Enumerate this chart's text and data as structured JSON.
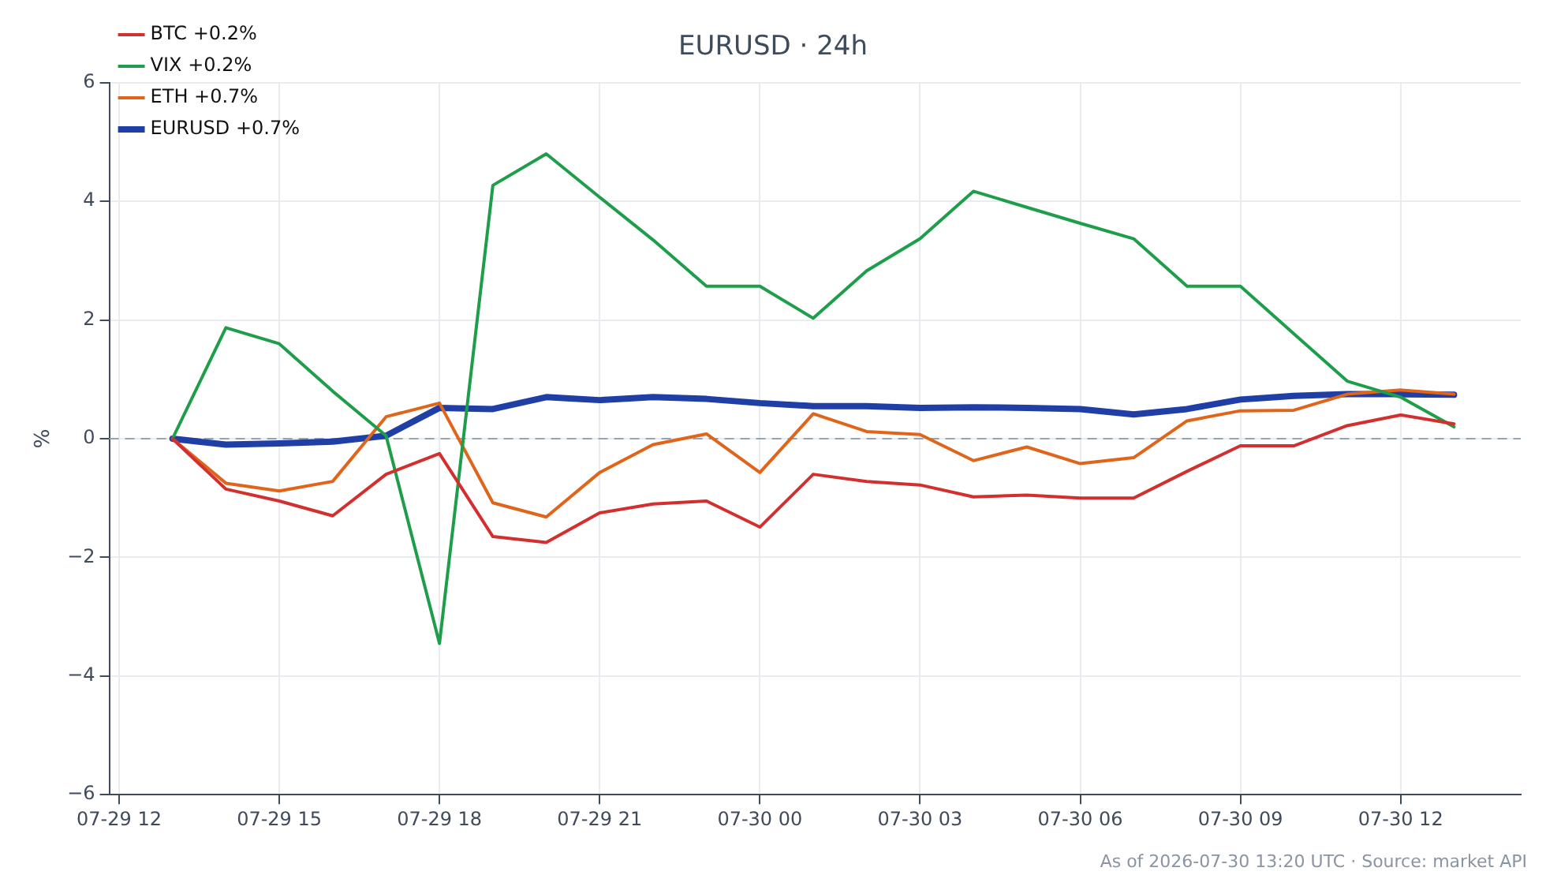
{
  "chart_data": {
    "type": "line",
    "title": "EURUSD · 24h",
    "ylabel": "%",
    "x": [
      "2026-07-29T13:00",
      "2026-07-29T14:00",
      "2026-07-29T15:00",
      "2026-07-29T16:00",
      "2026-07-29T17:00",
      "2026-07-29T18:00",
      "2026-07-29T19:00",
      "2026-07-29T20:00",
      "2026-07-29T21:00",
      "2026-07-29T22:00",
      "2026-07-29T23:00",
      "2026-07-30T00:00",
      "2026-07-30T01:00",
      "2026-07-30T02:00",
      "2026-07-30T03:00",
      "2026-07-30T04:00",
      "2026-07-30T05:00",
      "2026-07-30T06:00",
      "2026-07-30T07:00",
      "2026-07-30T08:00",
      "2026-07-30T09:00",
      "2026-07-30T10:00",
      "2026-07-30T11:00",
      "2026-07-30T12:00",
      "2026-07-30T13:00"
    ],
    "series": [
      {
        "name": "EURUSD +0.7%",
        "color": "#1f3fa6",
        "values": [
          0,
          -0.1,
          -0.08,
          -0.05,
          0.05,
          0.52,
          0.5,
          0.7,
          0.65,
          0.7,
          0.67,
          0.6,
          0.55,
          0.55,
          0.52,
          0.53,
          0.52,
          0.5,
          0.41,
          0.5,
          0.66,
          0.72,
          0.75,
          0.75,
          0.74
        ]
      },
      {
        "name": "BTC +0.2%",
        "color": "#d32f2f",
        "values": [
          0,
          -0.85,
          -1.05,
          -1.3,
          -0.6,
          -0.25,
          -1.65,
          -1.75,
          -1.25,
          -1.1,
          -1.05,
          -1.49,
          -0.6,
          -0.72,
          -0.78,
          -0.98,
          -0.95,
          -1.0,
          -1.0,
          -0.55,
          -0.12,
          -0.12,
          0.22,
          0.4,
          0.25
        ]
      },
      {
        "name": "VIX +0.2%",
        "color": "#1e9e4a",
        "values": [
          0,
          1.87,
          1.6,
          0.8,
          0.05,
          -3.45,
          4.27,
          4.8,
          4.07,
          3.35,
          2.57,
          2.57,
          2.03,
          2.83,
          3.37,
          4.17,
          3.9,
          3.63,
          3.37,
          2.57,
          2.57,
          1.77,
          0.97,
          0.7,
          0.2
        ]
      },
      {
        "name": "ETH +0.7%",
        "color": "#e0641a",
        "values": [
          0,
          -0.75,
          -0.88,
          -0.72,
          0.37,
          0.6,
          -1.08,
          -1.32,
          -0.57,
          -0.1,
          0.08,
          -0.57,
          0.42,
          0.12,
          0.07,
          -0.37,
          -0.14,
          -0.42,
          -0.32,
          0.3,
          0.47,
          0.48,
          0.75,
          0.82,
          0.75
        ]
      }
    ],
    "xlim": [
      "2026-07-29T11:49",
      "2026-07-30T14:15"
    ],
    "xticks": [
      {
        "value": "2026-07-29T12:00",
        "label": "07-29 12"
      },
      {
        "value": "2026-07-29T15:00",
        "label": "07-29 15"
      },
      {
        "value": "2026-07-29T18:00",
        "label": "07-29 18"
      },
      {
        "value": "2026-07-29T21:00",
        "label": "07-29 21"
      },
      {
        "value": "2026-07-30T00:00",
        "label": "07-30 00"
      },
      {
        "value": "2026-07-30T03:00",
        "label": "07-30 03"
      },
      {
        "value": "2026-07-30T06:00",
        "label": "07-30 06"
      },
      {
        "value": "2026-07-30T09:00",
        "label": "07-30 09"
      },
      {
        "value": "2026-07-30T12:00",
        "label": "07-30 12"
      }
    ],
    "ylim": [
      -6,
      6
    ],
    "yticks": [
      -6,
      -4,
      -2,
      0,
      2,
      4,
      6
    ],
    "ref_lines": [
      {
        "axis": "y",
        "value": 0,
        "color": "#94a3b8",
        "line_style": "dashed"
      }
    ],
    "annotations": [
      "As of 2026-07-30 13:20 UTC · Source: market API"
    ],
    "grid": true,
    "legend": "top left",
    "marker": "none",
    "line_style": "solid"
  }
}
